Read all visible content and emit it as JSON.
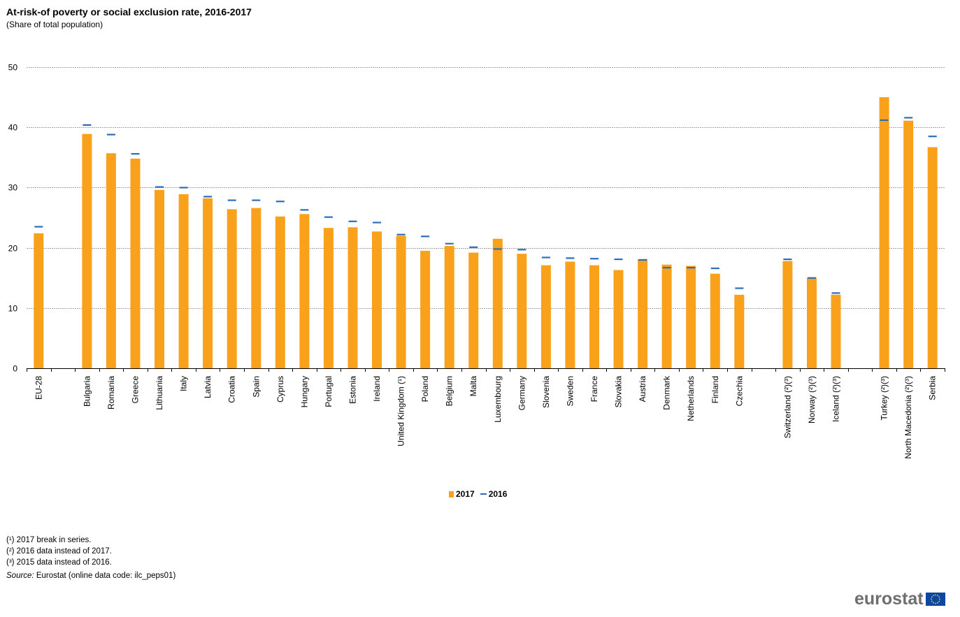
{
  "header": {
    "title": "At-risk-of poverty or social exclusion rate, 2016-2017",
    "subtitle": "(Share of total population)"
  },
  "chart_data": {
    "type": "bar",
    "categories": [
      "EU-28",
      "",
      "Bulgaria",
      "Romania",
      "Greece",
      "Lithuania",
      "Italy",
      "Latvia",
      "Croatia",
      "Spain",
      "Cyprus",
      "Hungary",
      "Portugal",
      "Estonia",
      "Ireland",
      "United Kingdom (¹)",
      "Poland",
      "Belgium",
      "Malta",
      "Luxembourg",
      "Germany",
      "Slovenia",
      "Sweden",
      "France",
      "Slovakia",
      "Austria",
      "Denmark",
      "Netherlands",
      "Finland",
      "Czechia",
      "",
      "Switzerland (²)(³)",
      "Norway (²)(³)",
      "Iceland (²)(³)",
      "",
      "Turkey (²)(³)",
      "North Macedonia (²)(³)",
      "Serbia"
    ],
    "series": [
      {
        "name": "2017",
        "render": "bar",
        "color": "#f9a11b",
        "values": [
          22.4,
          null,
          38.9,
          35.7,
          34.8,
          29.6,
          28.9,
          28.2,
          26.4,
          26.6,
          25.2,
          25.6,
          23.3,
          23.4,
          22.7,
          22.0,
          19.5,
          20.3,
          19.2,
          21.5,
          19.0,
          17.1,
          17.7,
          17.1,
          16.3,
          18.1,
          17.2,
          17.0,
          15.7,
          12.2,
          null,
          17.8,
          15.0,
          12.2,
          null,
          45.0,
          41.1,
          36.7
        ]
      },
      {
        "name": "2016",
        "render": "marker",
        "color": "#2a6ebb",
        "values": [
          23.5,
          null,
          40.4,
          38.8,
          35.6,
          30.1,
          30.0,
          28.5,
          27.9,
          27.9,
          27.7,
          26.3,
          25.1,
          24.4,
          24.2,
          22.2,
          21.9,
          20.7,
          20.1,
          19.8,
          19.7,
          18.4,
          18.3,
          18.2,
          18.1,
          18.0,
          16.7,
          16.7,
          16.6,
          13.3,
          null,
          18.1,
          15.0,
          12.5,
          null,
          41.2,
          41.6,
          38.5
        ]
      }
    ],
    "yticks": [
      0,
      10,
      20,
      30,
      40,
      50
    ],
    "ylim": [
      0,
      50
    ],
    "grid": true,
    "legend": "bottom-center"
  },
  "legend": {
    "label_2017": "2017",
    "label_2016": "2016"
  },
  "notes": {
    "note1": "(¹) 2017 break in series.",
    "note2": "(²) 2016 data instead of 2017.",
    "note3": "(³) 2015 data instead of 2016.",
    "source_label": "Source:",
    "source_text": " Eurostat (online data code: ilc_peps01)"
  },
  "logo": {
    "text": "eurostat"
  }
}
